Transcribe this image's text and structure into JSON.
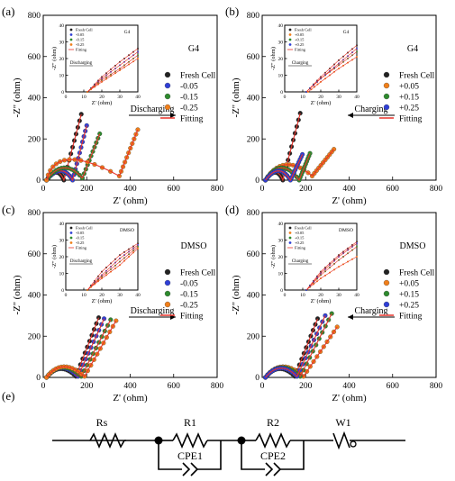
{
  "figure": {
    "panel_labels": [
      "(a)",
      "(b)",
      "(c)",
      "(d)",
      "(e)"
    ]
  },
  "chart_data": [
    {
      "type": "scatter",
      "panel": "(a)",
      "annotation": "G4",
      "arrow_label": "Discharging",
      "arrow_direction": "right",
      "xlabel": "Z' (ohm)",
      "ylabel": "-Z'' (ohm)",
      "xlim": [
        0,
        800
      ],
      "ylim": [
        0,
        800
      ],
      "xticks": [
        0,
        200,
        400,
        600,
        800
      ],
      "yticks": [
        0,
        200,
        400,
        600,
        800
      ],
      "legend_position": "right",
      "series": [
        {
          "name": "Fresh Cell",
          "color": "#222222",
          "semicircle": [
            [
              15,
              0
            ],
            [
              60,
              38
            ],
            [
              95,
              0
            ]
          ],
          "tail": [
            [
              95,
              0
            ],
            [
              175,
              320
            ]
          ]
        },
        {
          "name": "-0.05",
          "color": "#2f3fd6",
          "semicircle": [
            [
              15,
              0
            ],
            [
              80,
              45
            ],
            [
              135,
              0
            ]
          ],
          "tail": [
            [
              135,
              0
            ],
            [
              200,
              265
            ]
          ]
        },
        {
          "name": "-0.15",
          "color": "#2e8a2e",
          "semicircle": [
            [
              15,
              0
            ],
            [
              95,
              60
            ],
            [
              180,
              10
            ]
          ],
          "tail": [
            [
              180,
              10
            ],
            [
              260,
              225
            ]
          ]
        },
        {
          "name": "-0.25",
          "color": "#f07f1a",
          "semicircle": [
            [
              15,
              0
            ],
            [
              120,
              100
            ],
            [
              350,
              20
            ]
          ],
          "tail": [
            [
              350,
              20
            ],
            [
              435,
              245
            ]
          ]
        },
        {
          "name": "Fitting",
          "color": "#e8332a",
          "kind": "line"
        }
      ],
      "inset": {
        "annotation": "G4",
        "arrow_label": "Discharging",
        "xlabel": "Z' (ohm)",
        "ylabel": "-Z'' (ohm)",
        "xlim": [
          0,
          40
        ],
        "ylim": [
          0,
          40
        ],
        "xticks": [
          0,
          10,
          20,
          30,
          40
        ],
        "yticks": [
          0,
          10,
          20,
          30,
          40
        ],
        "legend": [
          "Fresh Cell",
          "-0.05",
          "-0.15",
          "-0.25",
          "Fitting"
        ],
        "curves": [
          {
            "name": "Fresh Cell",
            "color": "#222222",
            "points": [
              [
                12,
                0
              ],
              [
                20,
                9
              ],
              [
                30,
                18
              ],
              [
                40,
                26
              ]
            ]
          },
          {
            "name": "-0.05",
            "color": "#2f3fd6",
            "points": [
              [
                12,
                0
              ],
              [
                20,
                8
              ],
              [
                30,
                16
              ],
              [
                40,
                24
              ]
            ]
          },
          {
            "name": "-0.15",
            "color": "#2e8a2e",
            "points": [
              [
                12,
                0
              ],
              [
                20,
                7
              ],
              [
                30,
                14
              ],
              [
                40,
                22
              ]
            ]
          },
          {
            "name": "-0.25",
            "color": "#f07f1a",
            "points": [
              [
                12,
                0
              ],
              [
                20,
                6
              ],
              [
                30,
                13
              ],
              [
                40,
                20
              ]
            ]
          }
        ]
      }
    },
    {
      "type": "scatter",
      "panel": "(b)",
      "annotation": "G4",
      "arrow_label": "Charging",
      "arrow_direction": "left",
      "xlabel": "Z' (ohm)",
      "ylabel": "-Z'' (ohm)",
      "xlim": [
        0,
        800
      ],
      "ylim": [
        0,
        800
      ],
      "xticks": [
        0,
        200,
        400,
        600,
        800
      ],
      "yticks": [
        0,
        200,
        400,
        600,
        800
      ],
      "legend_position": "right",
      "series": [
        {
          "name": "Fresh Cell",
          "color": "#222222",
          "semicircle": [
            [
              15,
              0
            ],
            [
              60,
              38
            ],
            [
              95,
              0
            ]
          ],
          "tail": [
            [
              95,
              0
            ],
            [
              175,
              325
            ]
          ]
        },
        {
          "name": "+0.05",
          "color": "#f07f1a",
          "semicircle": [
            [
              15,
              0
            ],
            [
              110,
              75
            ],
            [
              230,
              20
            ]
          ],
          "tail": [
            [
              230,
              20
            ],
            [
              330,
              150
            ]
          ]
        },
        {
          "name": "+0.15",
          "color": "#2e8a2e",
          "semicircle": [
            [
              15,
              0
            ],
            [
              90,
              60
            ],
            [
              170,
              0
            ]
          ],
          "tail": [
            [
              170,
              0
            ],
            [
              220,
              130
            ]
          ]
        },
        {
          "name": "+0.25",
          "color": "#2f3fd6",
          "semicircle": [
            [
              15,
              0
            ],
            [
              75,
              45
            ],
            [
              130,
              0
            ]
          ],
          "tail": [
            [
              130,
              0
            ],
            [
              185,
              125
            ]
          ]
        },
        {
          "name": "Fitting",
          "color": "#e8332a",
          "kind": "line"
        }
      ],
      "inset": {
        "annotation": "G4",
        "arrow_label": "Charging",
        "xlabel": "Z' (ohm)",
        "ylabel": "-Z'' (ohm)",
        "xlim": [
          0,
          40
        ],
        "ylim": [
          0,
          40
        ],
        "xticks": [
          0,
          10,
          20,
          30,
          40
        ],
        "yticks": [
          0,
          10,
          20,
          30,
          40
        ],
        "legend": [
          "Fresh Cell",
          "+0.05",
          "+0.15",
          "+0.25",
          "Fitting"
        ],
        "curves": [
          {
            "name": "Fresh Cell",
            "color": "#222222",
            "points": [
              [
                12,
                0
              ],
              [
                20,
                9
              ],
              [
                30,
                19
              ],
              [
                40,
                28
              ]
            ]
          },
          {
            "name": "+0.05",
            "color": "#f07f1a",
            "points": [
              [
                13,
                0
              ],
              [
                20,
                6
              ],
              [
                30,
                14
              ],
              [
                40,
                21
              ]
            ]
          },
          {
            "name": "+0.15",
            "color": "#2e8a2e",
            "points": [
              [
                12,
                0
              ],
              [
                20,
                8
              ],
              [
                30,
                16
              ],
              [
                40,
                24
              ]
            ]
          },
          {
            "name": "+0.25",
            "color": "#2f3fd6",
            "points": [
              [
                12,
                0
              ],
              [
                20,
                8
              ],
              [
                30,
                17
              ],
              [
                40,
                26
              ]
            ]
          }
        ]
      }
    },
    {
      "type": "scatter",
      "panel": "(c)",
      "annotation": "DMSO",
      "arrow_label": "Discharging",
      "arrow_direction": "right",
      "xlabel": "Z' (ohm)",
      "ylabel": "-Z'' (ohm)",
      "xlim": [
        0,
        800
      ],
      "ylim": [
        0,
        800
      ],
      "xticks": [
        0,
        200,
        400,
        600,
        800
      ],
      "yticks": [
        0,
        200,
        400,
        600,
        800
      ],
      "legend_position": "right",
      "series": [
        {
          "name": "Fresh Cell",
          "color": "#222222",
          "semicircle": [
            [
              15,
              0
            ],
            [
              80,
              42
            ],
            [
              150,
              5
            ]
          ],
          "tail": [
            [
              150,
              5
            ],
            [
              255,
              290
            ]
          ]
        },
        {
          "name": "-0.05",
          "color": "#2f3fd6",
          "semicircle": [
            [
              15,
              0
            ],
            [
              85,
              45
            ],
            [
              160,
              5
            ]
          ],
          "tail": [
            [
              160,
              5
            ],
            [
              280,
              285
            ]
          ]
        },
        {
          "name": "-0.15",
          "color": "#2e8a2e",
          "semicircle": [
            [
              15,
              0
            ],
            [
              90,
              48
            ],
            [
              175,
              5
            ]
          ],
          "tail": [
            [
              175,
              5
            ],
            [
              310,
              280
            ]
          ]
        },
        {
          "name": "-0.25",
          "color": "#f07f1a",
          "semicircle": [
            [
              15,
              0
            ],
            [
              95,
              52
            ],
            [
              190,
              5
            ]
          ],
          "tail": [
            [
              190,
              5
            ],
            [
              335,
              275
            ]
          ]
        },
        {
          "name": "Fitting",
          "color": "#e8332a",
          "kind": "line"
        }
      ],
      "inset": {
        "annotation": "DMSO",
        "arrow_label": "Discharging",
        "xlabel": "Z' (ohm)",
        "ylabel": "-Z'' (ohm)",
        "xlim": [
          0,
          40
        ],
        "ylim": [
          0,
          40
        ],
        "xticks": [
          0,
          10,
          20,
          30,
          40
        ],
        "yticks": [
          0,
          10,
          20,
          30,
          40
        ],
        "legend": [
          "Fresh Cell",
          "-0.05",
          "-0.15",
          "-0.25",
          "Fitting"
        ],
        "curves": [
          {
            "name": "Fresh Cell",
            "color": "#222222",
            "points": [
              [
                12,
                0
              ],
              [
                20,
                11
              ],
              [
                30,
                21
              ],
              [
                40,
                28
              ]
            ]
          },
          {
            "name": "-0.05",
            "color": "#2f3fd6",
            "points": [
              [
                12,
                0
              ],
              [
                20,
                9
              ],
              [
                30,
                19
              ],
              [
                40,
                27
              ]
            ]
          },
          {
            "name": "-0.15",
            "color": "#2e8a2e",
            "points": [
              [
                12,
                0
              ],
              [
                20,
                8
              ],
              [
                30,
                17
              ],
              [
                40,
                26
              ]
            ]
          },
          {
            "name": "-0.25",
            "color": "#f07f1a",
            "points": [
              [
                12,
                0
              ],
              [
                20,
                7
              ],
              [
                30,
                15
              ],
              [
                40,
                25
              ]
            ]
          }
        ]
      }
    },
    {
      "type": "scatter",
      "panel": "(d)",
      "annotation": "DMSO",
      "arrow_label": "Charging",
      "arrow_direction": "left",
      "xlabel": "Z' (ohm)",
      "ylabel": "-Z'' (ohm)",
      "xlim": [
        0,
        800
      ],
      "ylim": [
        0,
        800
      ],
      "xticks": [
        0,
        200,
        400,
        600,
        800
      ],
      "yticks": [
        0,
        200,
        400,
        600,
        800
      ],
      "legend_position": "right",
      "series": [
        {
          "name": "Fresh Cell",
          "color": "#222222",
          "semicircle": [
            [
              15,
              0
            ],
            [
              80,
              42
            ],
            [
              150,
              5
            ]
          ],
          "tail": [
            [
              150,
              5
            ],
            [
              255,
              285
            ]
          ]
        },
        {
          "name": "+0.05",
          "color": "#f07f1a",
          "semicircle": [
            [
              15,
              0
            ],
            [
              95,
              52
            ],
            [
              190,
              5
            ]
          ],
          "tail": [
            [
              190,
              5
            ],
            [
              345,
              245
            ]
          ]
        },
        {
          "name": "+0.15",
          "color": "#2e8a2e",
          "semicircle": [
            [
              15,
              0
            ],
            [
              90,
              48
            ],
            [
              175,
              5
            ]
          ],
          "tail": [
            [
              175,
              5
            ],
            [
              320,
              310
            ]
          ]
        },
        {
          "name": "+0.25",
          "color": "#2f3fd6",
          "semicircle": [
            [
              15,
              0
            ],
            [
              85,
              45
            ],
            [
              160,
              5
            ]
          ],
          "tail": [
            [
              160,
              5
            ],
            [
              290,
              300
            ]
          ]
        },
        {
          "name": "Fitting",
          "color": "#e8332a",
          "kind": "line"
        }
      ],
      "inset": {
        "annotation": "DMSO",
        "arrow_label": "Charging",
        "xlabel": "Z' (ohm)",
        "ylabel": "-Z'' (ohm)",
        "xlim": [
          0,
          40
        ],
        "ylim": [
          0,
          40
        ],
        "xticks": [
          0,
          10,
          20,
          30,
          40
        ],
        "yticks": [
          0,
          10,
          20,
          30,
          40
        ],
        "legend": [
          "Fresh Cell",
          "+0.05",
          "+0.15",
          "+0.25",
          "Fitting"
        ],
        "curves": [
          {
            "name": "Fresh Cell",
            "color": "#222222",
            "points": [
              [
                12,
                0
              ],
              [
                20,
                11
              ],
              [
                30,
                21
              ],
              [
                40,
                29
              ]
            ]
          },
          {
            "name": "+0.05",
            "color": "#f07f1a",
            "points": [
              [
                12,
                0
              ],
              [
                20,
                7
              ],
              [
                30,
                14
              ],
              [
                40,
                20
              ]
            ]
          },
          {
            "name": "+0.15",
            "color": "#2e8a2e",
            "points": [
              [
                12,
                0
              ],
              [
                20,
                9
              ],
              [
                30,
                18
              ],
              [
                40,
                26
              ]
            ]
          },
          {
            "name": "+0.25",
            "color": "#2f3fd6",
            "points": [
              [
                12,
                0
              ],
              [
                20,
                10
              ],
              [
                30,
                20
              ],
              [
                40,
                28
              ]
            ]
          }
        ]
      }
    }
  ],
  "circuit": {
    "panel": "(e)",
    "labels": {
      "rs": "Rs",
      "r1": "R1",
      "cpe1": "CPE1",
      "r2": "R2",
      "cpe2": "CPE2",
      "w1": "W1"
    }
  }
}
